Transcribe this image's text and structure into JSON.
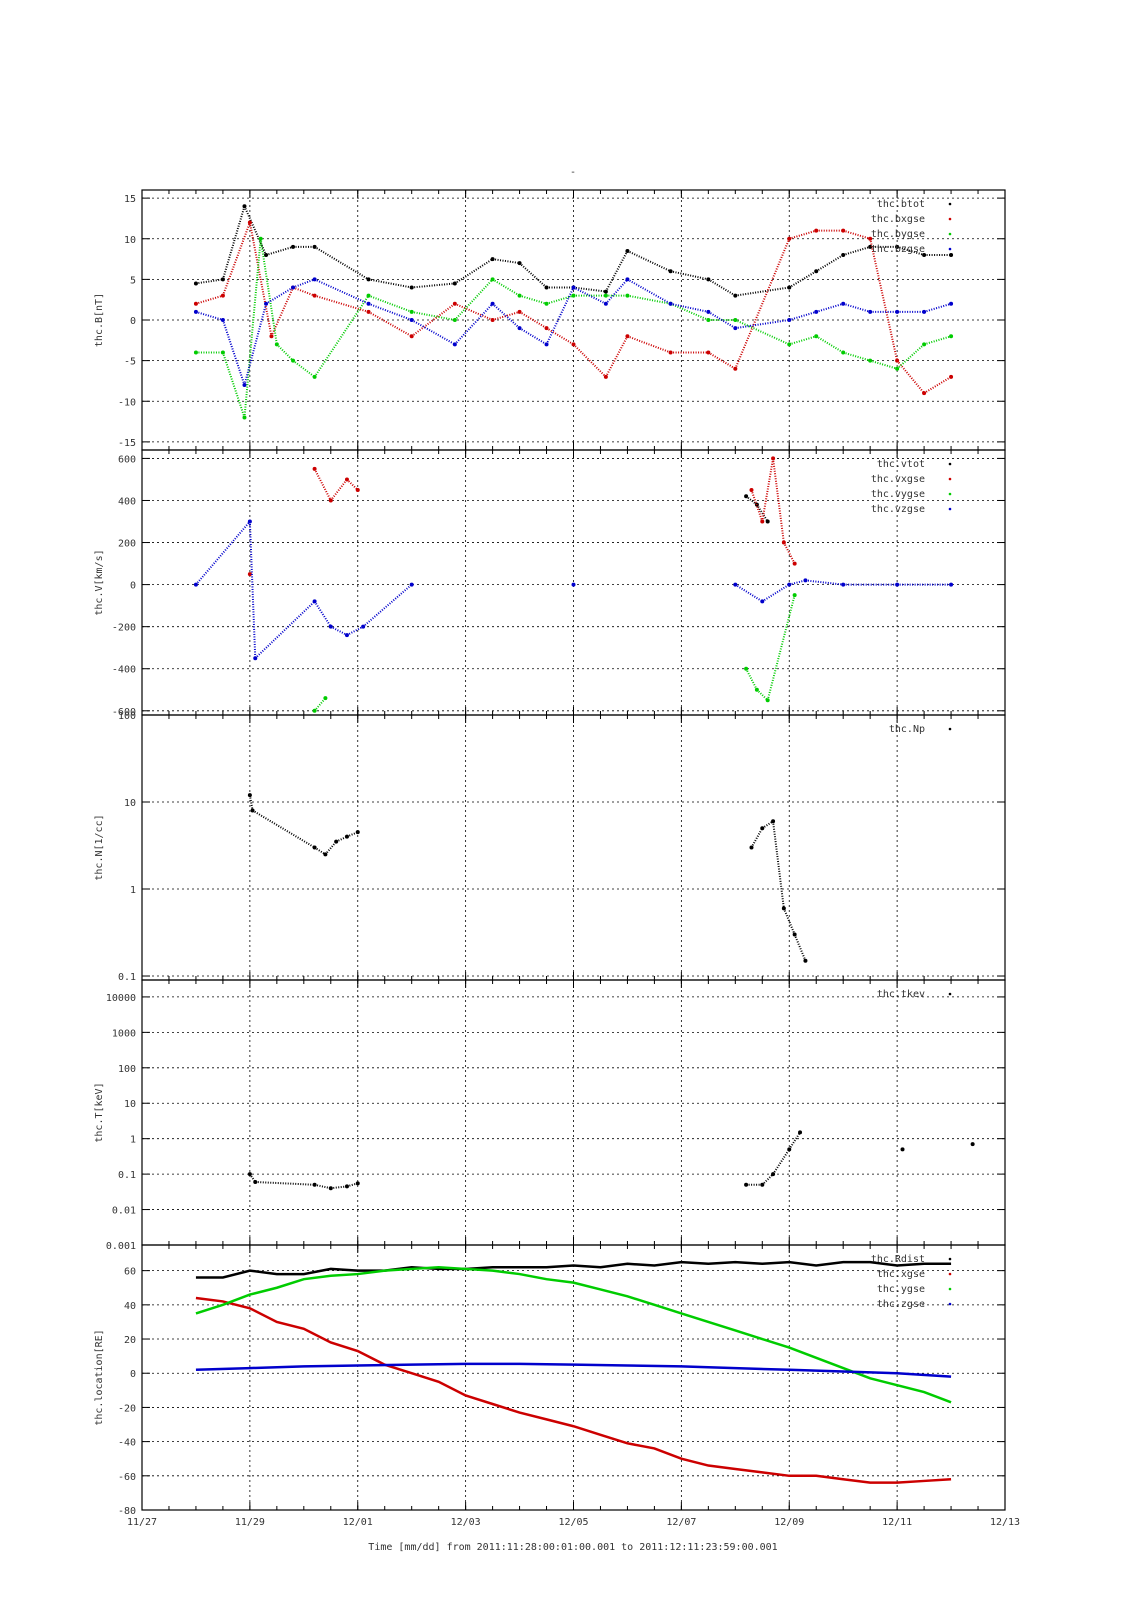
{
  "page_title": "-",
  "colors": {
    "black": "#000000",
    "red": "#cc0000",
    "green": "#00cc00",
    "blue": "#0000cc"
  },
  "time_axis": {
    "label": "Time [mm/dd]  from 2011:11:28:00:01:00.001  to  2011:12:11:23:59:00.001",
    "unit": "days since 11/27",
    "range": [
      0,
      16
    ],
    "tick_values": [
      0,
      2,
      4,
      6,
      8,
      10,
      12,
      14,
      16
    ],
    "tick_labels": [
      "11/27",
      "11/29",
      "12/01",
      "12/03",
      "12/05",
      "12/07",
      "12/09",
      "12/11",
      "12/13"
    ]
  },
  "chart_data": [
    {
      "type": "scatter",
      "ylabel": "thc.B[nT]",
      "ylim": [
        -16,
        16
      ],
      "yticks": [
        -15,
        -10,
        -5,
        0,
        5,
        10,
        15
      ],
      "yticklabels": [
        "-15",
        "-10",
        "-5",
        "0",
        "5",
        "10",
        "15"
      ],
      "grid": true,
      "legend": "top-right",
      "series": [
        {
          "name": "thc.btot",
          "color": "black",
          "x": [
            1,
            1.5,
            1.9,
            2.3,
            2.8,
            3.2,
            4.2,
            5,
            5.8,
            6.5,
            7,
            7.5,
            8,
            8.6,
            9,
            9.8,
            10.5,
            11,
            12,
            12.5,
            13,
            13.5,
            14,
            14.5,
            15
          ],
          "y": [
            4.5,
            5,
            14,
            8,
            9,
            9,
            5,
            4,
            4.5,
            7.5,
            7,
            4,
            4,
            3.5,
            8.5,
            6,
            5,
            3,
            4,
            6,
            8,
            9,
            9,
            8,
            8
          ]
        },
        {
          "name": "thc.bxgse",
          "color": "red",
          "x": [
            1,
            1.5,
            2,
            2.4,
            2.8,
            3.2,
            4.2,
            5,
            5.8,
            6.5,
            7,
            7.5,
            8,
            8.6,
            9,
            9.8,
            10.5,
            11,
            12,
            12.5,
            13,
            13.5,
            14,
            14.5,
            15
          ],
          "y": [
            2,
            3,
            12,
            -2,
            4,
            3,
            1,
            -2,
            2,
            0,
            1,
            -1,
            -3,
            -7,
            -2,
            -4,
            -4,
            -6,
            10,
            11,
            11,
            10,
            -5,
            -9,
            -7
          ]
        },
        {
          "name": "thc.bygse",
          "color": "green",
          "x": [
            1,
            1.5,
            1.9,
            2.2,
            2.5,
            2.8,
            3.2,
            4.2,
            5,
            5.8,
            6.5,
            7,
            7.5,
            8,
            8.6,
            9,
            9.8,
            10.5,
            11,
            12,
            12.5,
            13,
            13.5,
            14,
            14.5,
            15
          ],
          "y": [
            -4,
            -4,
            -12,
            10,
            -3,
            -5,
            -7,
            3,
            1,
            0,
            5,
            3,
            2,
            3,
            3,
            3,
            2,
            0,
            0,
            -3,
            -2,
            -4,
            -5,
            -6,
            -3,
            -2
          ]
        },
        {
          "name": "thc.bzgse",
          "color": "blue",
          "x": [
            1,
            1.5,
            1.9,
            2.3,
            2.8,
            3.2,
            4.2,
            5,
            5.8,
            6.5,
            7,
            7.5,
            8,
            8.6,
            9,
            9.8,
            10.5,
            11,
            12,
            12.5,
            13,
            13.5,
            14,
            14.5,
            15
          ],
          "y": [
            1,
            0,
            -8,
            2,
            4,
            5,
            2,
            0,
            -3,
            2,
            -1,
            -3,
            4,
            2,
            5,
            2,
            1,
            -1,
            0,
            1,
            2,
            1,
            1,
            1,
            2
          ]
        }
      ]
    },
    {
      "type": "scatter",
      "ylabel": "thc.V[km/s]",
      "ylim": [
        -620,
        640
      ],
      "yticks": [
        -600,
        -400,
        -200,
        0,
        200,
        400,
        600
      ],
      "yticklabels": [
        "-600",
        "-400",
        "-200",
        "0",
        "200",
        "400",
        "600"
      ],
      "grid": true,
      "legend": "top-right",
      "series": [
        {
          "name": "thc.vtot",
          "color": "black",
          "x": [
            11.2,
            11.4,
            11.6
          ],
          "y": [
            420,
            380,
            300
          ]
        },
        {
          "name": "thc.vxgse",
          "color": "red",
          "x": [
            2,
            3.2,
            3.5,
            3.8,
            4,
            11.3,
            11.5,
            11.7,
            11.9,
            12.1
          ],
          "y": [
            50,
            550,
            400,
            500,
            450,
            450,
            300,
            600,
            200,
            100
          ]
        },
        {
          "name": "thc.vygse",
          "color": "green",
          "x": [
            3.2,
            3.4,
            11.2,
            11.4,
            11.6,
            12.1
          ],
          "y": [
            -600,
            -540,
            -400,
            -500,
            -550,
            -50
          ]
        },
        {
          "name": "thc.vzgse",
          "color": "blue",
          "x": [
            1,
            2,
            2.1,
            3.2,
            3.5,
            3.8,
            4.1,
            5,
            8,
            11,
            11.5,
            12,
            12.3,
            13,
            14,
            15
          ],
          "y": [
            0,
            300,
            -350,
            -80,
            -200,
            -240,
            -200,
            0,
            0,
            0,
            -80,
            0,
            20,
            0,
            0,
            0
          ]
        }
      ]
    },
    {
      "type": "scatter",
      "ylabel": "thc.N[1/cc]",
      "yscale": "log",
      "ylim": [
        0.09,
        100
      ],
      "yticks": [
        0.1,
        1,
        10,
        100
      ],
      "yticklabels": [
        "0.1",
        "1",
        "10",
        "100"
      ],
      "grid": true,
      "legend": "top-right",
      "series": [
        {
          "name": "thc.Np",
          "color": "black",
          "x": [
            2,
            2.05,
            3.2,
            3.4,
            3.6,
            3.8,
            4,
            11.3,
            11.5,
            11.7,
            11.9,
            12.1,
            12.3
          ],
          "y": [
            12,
            8,
            3,
            2.5,
            3.5,
            4,
            4.5,
            3,
            5,
            6,
            0.6,
            0.3,
            0.15
          ]
        }
      ]
    },
    {
      "type": "scatter",
      "ylabel": "thc.T[keV]",
      "yscale": "log",
      "ylim": [
        0.001,
        30000
      ],
      "yticks": [
        0.001,
        0.01,
        0.1,
        1,
        10,
        100,
        1000,
        10000
      ],
      "yticklabels": [
        "0.001",
        "0.01",
        "0.1",
        "1",
        "10",
        "100",
        "1000",
        "10000"
      ],
      "grid": true,
      "legend": "top-right",
      "series": [
        {
          "name": "thc.tkev",
          "color": "black",
          "x": [
            2,
            2.1,
            3.2,
            3.5,
            3.8,
            4,
            11.2,
            11.5,
            11.7,
            12,
            12.2,
            14.1,
            15.4
          ],
          "y": [
            0.1,
            0.06,
            0.05,
            0.04,
            0.045,
            0.055,
            0.05,
            0.05,
            0.1,
            0.5,
            1.5,
            0.5,
            0.7
          ]
        }
      ]
    },
    {
      "type": "line",
      "ylabel": "thc.location[RE]",
      "ylim": [
        -80,
        75
      ],
      "yticks": [
        -80,
        -60,
        -40,
        -20,
        0,
        20,
        40,
        60
      ],
      "yticklabels": [
        "-80",
        "-60",
        "-40",
        "-20",
        "0",
        "20",
        "40",
        "60"
      ],
      "grid": true,
      "legend": "top-right",
      "series": [
        {
          "name": "thc.Rdist",
          "color": "black",
          "x": [
            1,
            1.5,
            2,
            2.5,
            3,
            3.5,
            4,
            4.5,
            5,
            5.5,
            6,
            6.5,
            7,
            7.5,
            8,
            8.5,
            9,
            9.5,
            10,
            10.5,
            11,
            11.5,
            12,
            12.5,
            13,
            13.5,
            14,
            14.5,
            15
          ],
          "y": [
            56,
            56,
            60,
            58,
            58,
            61,
            60,
            60,
            62,
            61,
            61,
            62,
            62,
            62,
            63,
            62,
            64,
            63,
            65,
            64,
            65,
            64,
            65,
            63,
            65,
            65,
            63,
            64,
            64
          ]
        },
        {
          "name": "thc.xgse",
          "color": "red",
          "x": [
            1,
            1.5,
            2,
            2.5,
            3,
            3.5,
            4,
            4.5,
            5,
            5.5,
            6,
            6.5,
            7,
            7.5,
            8,
            8.5,
            9,
            9.5,
            10,
            10.5,
            11,
            11.5,
            12,
            12.5,
            13,
            13.5,
            14,
            14.5,
            15
          ],
          "y": [
            44,
            42,
            38,
            30,
            26,
            18,
            13,
            5,
            0,
            -5,
            -13,
            -18,
            -23,
            -27,
            -31,
            -36,
            -41,
            -44,
            -50,
            -54,
            -56,
            -58,
            -60,
            -60,
            -62,
            -64,
            -64,
            -63,
            -62
          ]
        },
        {
          "name": "thc.ygse",
          "color": "green",
          "x": [
            1,
            1.5,
            2,
            2.5,
            3,
            3.5,
            4,
            4.5,
            5,
            5.5,
            6,
            6.5,
            7,
            7.5,
            8,
            8.5,
            9,
            9.5,
            10,
            10.5,
            11,
            11.5,
            12,
            12.5,
            13,
            13.5,
            14,
            14.5,
            15
          ],
          "y": [
            35,
            40,
            46,
            50,
            55,
            57,
            58,
            60,
            61,
            62,
            61,
            60,
            58,
            55,
            53,
            49,
            45,
            40,
            35,
            30,
            25,
            20,
            15,
            9,
            3,
            -3,
            -7,
            -11,
            -17
          ]
        },
        {
          "name": "thc.zgse",
          "color": "blue",
          "x": [
            1,
            2,
            3,
            4,
            5,
            6,
            7,
            8,
            9,
            10,
            11,
            12,
            13,
            14,
            15
          ],
          "y": [
            2,
            3,
            4,
            4.5,
            5,
            5.5,
            5.5,
            5,
            4.5,
            4,
            3,
            2,
            1,
            0,
            -2
          ]
        }
      ]
    }
  ]
}
